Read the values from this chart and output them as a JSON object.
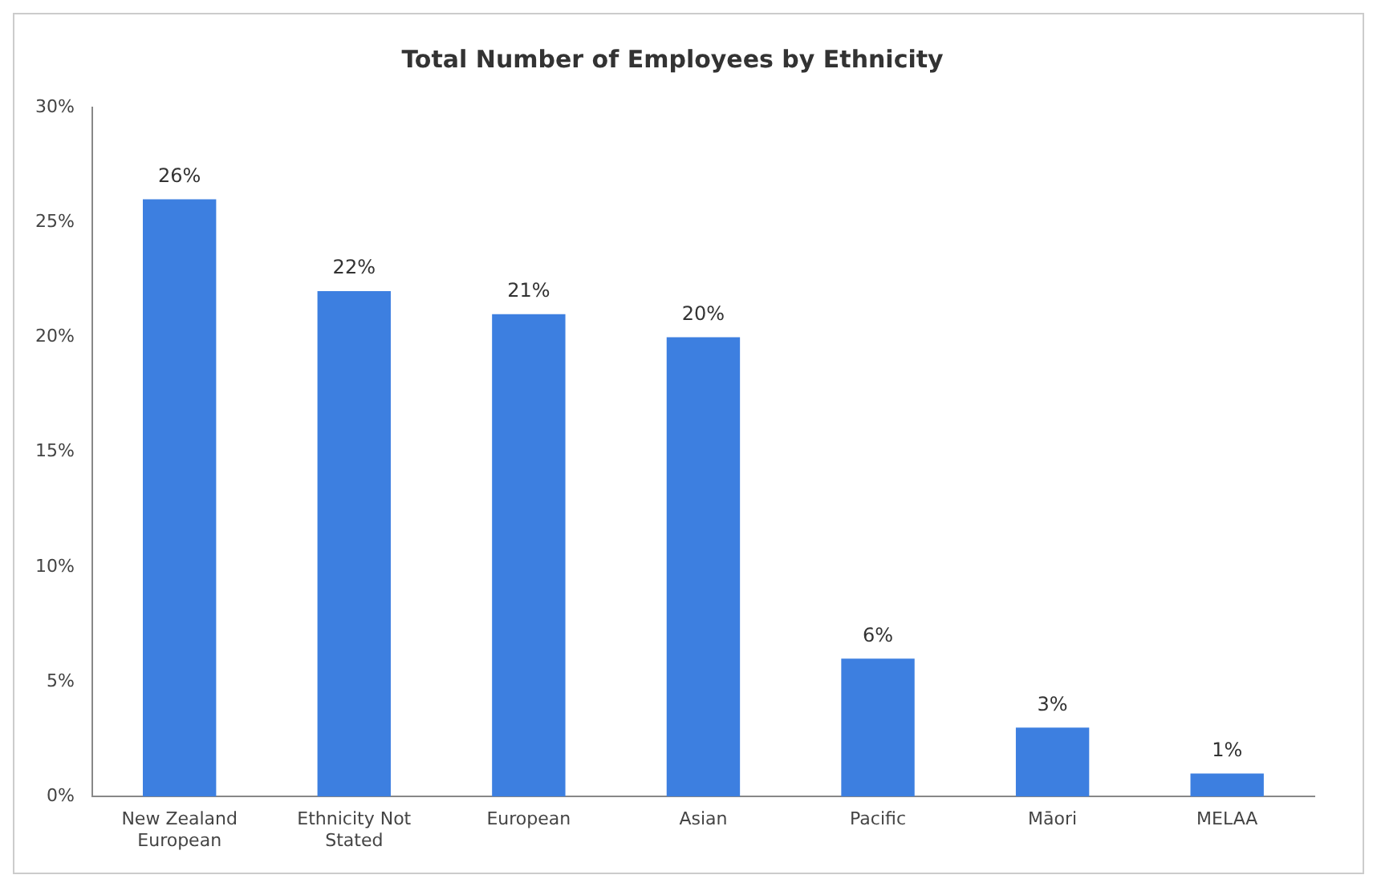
{
  "chart_data": {
    "type": "bar",
    "title": "Total Number of Employees by Ethnicity",
    "categories": [
      "New Zealand European",
      "Ethnicity Not Stated",
      "European",
      "Asian",
      "Pacific",
      "Māori",
      "MELAA"
    ],
    "values": [
      26,
      22,
      21,
      20,
      6,
      3,
      1
    ],
    "value_labels": [
      "26%",
      "22%",
      "21%",
      "20%",
      "6%",
      "3%",
      "1%"
    ],
    "color": "#3d7fe0",
    "ylim": [
      0,
      30
    ],
    "yticks": [
      {
        "value": 0,
        "label": "0%"
      },
      {
        "value": 5,
        "label": "5%"
      },
      {
        "value": 10,
        "label": "10%"
      },
      {
        "value": 15,
        "label": "15%"
      },
      {
        "value": 20,
        "label": "20%"
      },
      {
        "value": 25,
        "label": "25%"
      },
      {
        "value": 30,
        "label": "30%"
      }
    ],
    "grid": false,
    "legend": false
  }
}
